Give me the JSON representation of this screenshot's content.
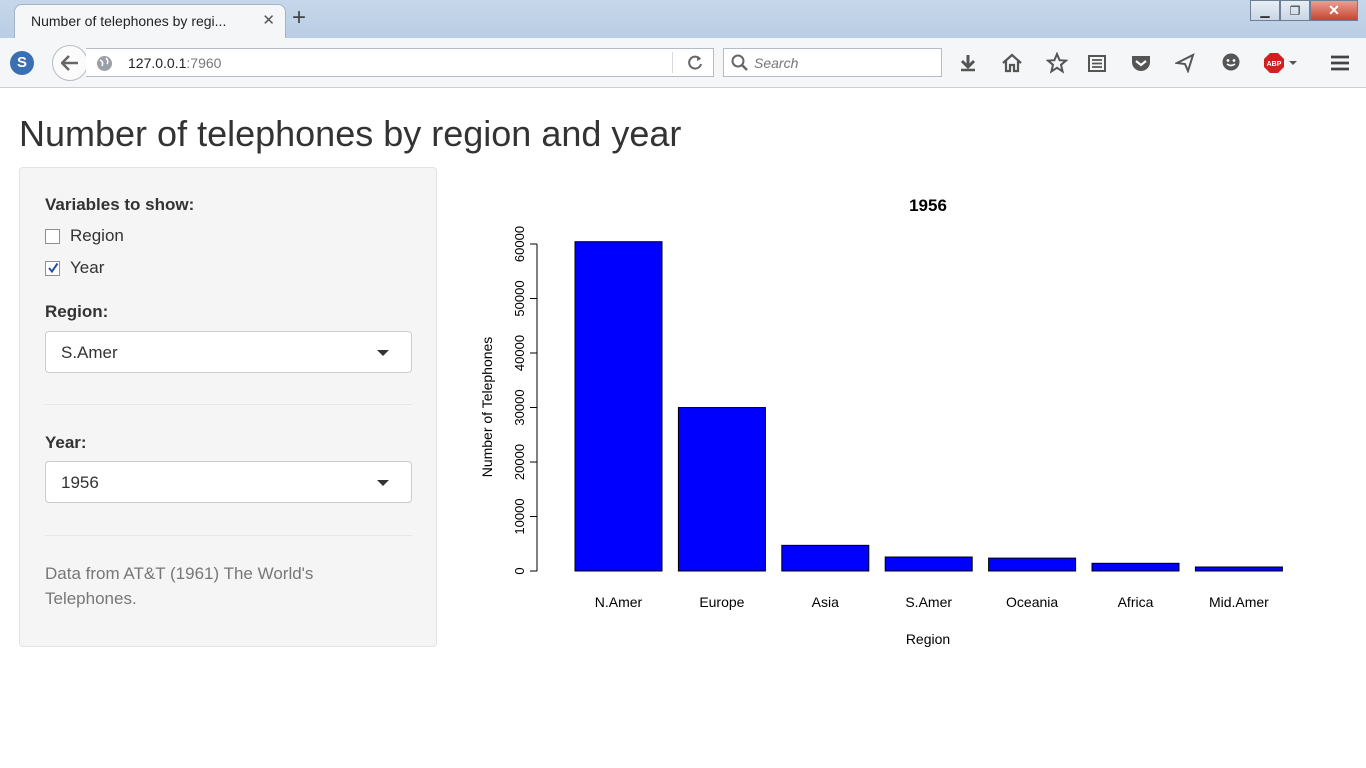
{
  "browser": {
    "tab_title": "Number of telephones by regi...",
    "url_host": "127.0.0.1",
    "url_port": ":7960",
    "search_placeholder": "Search"
  },
  "page": {
    "title": "Number of telephones by region and year"
  },
  "sidebar": {
    "variables_label": "Variables to show:",
    "checkboxes": [
      {
        "label": "Region",
        "checked": false
      },
      {
        "label": "Year",
        "checked": true
      }
    ],
    "region_label": "Region:",
    "region_value": "S.Amer",
    "year_label": "Year:",
    "year_value": "1956",
    "note": "Data from AT&T (1961) The World's Telephones."
  },
  "chart_data": {
    "type": "bar",
    "title": "1956",
    "xlabel": "Region",
    "ylabel": "Number of Telephones",
    "categories": [
      "N.Amer",
      "Europe",
      "Asia",
      "S.Amer",
      "Oceania",
      "Africa",
      "Mid.Amer"
    ],
    "values": [
      60423,
      29990,
      4708,
      2568,
      2366,
      1411,
      733
    ],
    "yticks": [
      0,
      10000,
      20000,
      30000,
      40000,
      50000,
      60000
    ],
    "ylim": [
      0,
      60000
    ],
    "bar_color": "#0000ff"
  }
}
